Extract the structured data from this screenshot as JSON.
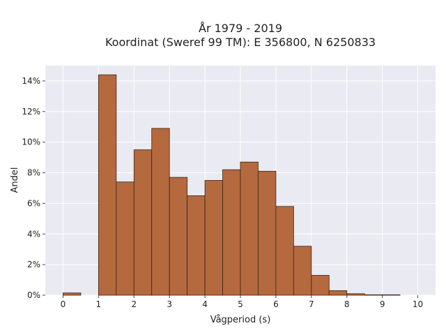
{
  "chart_data": {
    "type": "bar",
    "title": "År 1979 - 2019",
    "subtitle": "Koordinat (Sweref 99 TM): E 356800, N 6250833",
    "xlabel": "Vågperiod (s)",
    "ylabel": "Andel",
    "xlim": [
      -0.5,
      10.5
    ],
    "ylim": [
      0,
      15
    ],
    "x_ticks": [
      0,
      1,
      2,
      3,
      4,
      5,
      6,
      7,
      8,
      9,
      10
    ],
    "x_tick_labels": [
      "0",
      "1",
      "2",
      "3",
      "4",
      "5",
      "6",
      "7",
      "8",
      "9",
      "10"
    ],
    "y_ticks": [
      0,
      2,
      4,
      6,
      8,
      10,
      12,
      14
    ],
    "y_tick_labels": [
      "0%",
      "2%",
      "4%",
      "6%",
      "8%",
      "10%",
      "12%",
      "14%"
    ],
    "bin_width": 0.5,
    "bins": [
      {
        "start": 0.0,
        "value": 0.15
      },
      {
        "start": 0.5,
        "value": 0.0
      },
      {
        "start": 1.0,
        "value": 14.4
      },
      {
        "start": 1.5,
        "value": 7.4
      },
      {
        "start": 2.0,
        "value": 9.5
      },
      {
        "start": 2.5,
        "value": 10.9
      },
      {
        "start": 3.0,
        "value": 7.7
      },
      {
        "start": 3.5,
        "value": 6.5
      },
      {
        "start": 4.0,
        "value": 7.5
      },
      {
        "start": 4.5,
        "value": 8.2
      },
      {
        "start": 5.0,
        "value": 8.7
      },
      {
        "start": 5.5,
        "value": 8.1
      },
      {
        "start": 6.0,
        "value": 5.8
      },
      {
        "start": 6.5,
        "value": 3.2
      },
      {
        "start": 7.0,
        "value": 1.3
      },
      {
        "start": 7.5,
        "value": 0.3
      },
      {
        "start": 8.0,
        "value": 0.1
      },
      {
        "start": 8.5,
        "value": 0.03
      },
      {
        "start": 9.0,
        "value": 0.03
      }
    ],
    "grid": true,
    "bar_color": "#b5693f",
    "bar_edge_color": "#3b2416",
    "plot_background": "#eaeaf2",
    "grid_color": "#ffffff"
  }
}
